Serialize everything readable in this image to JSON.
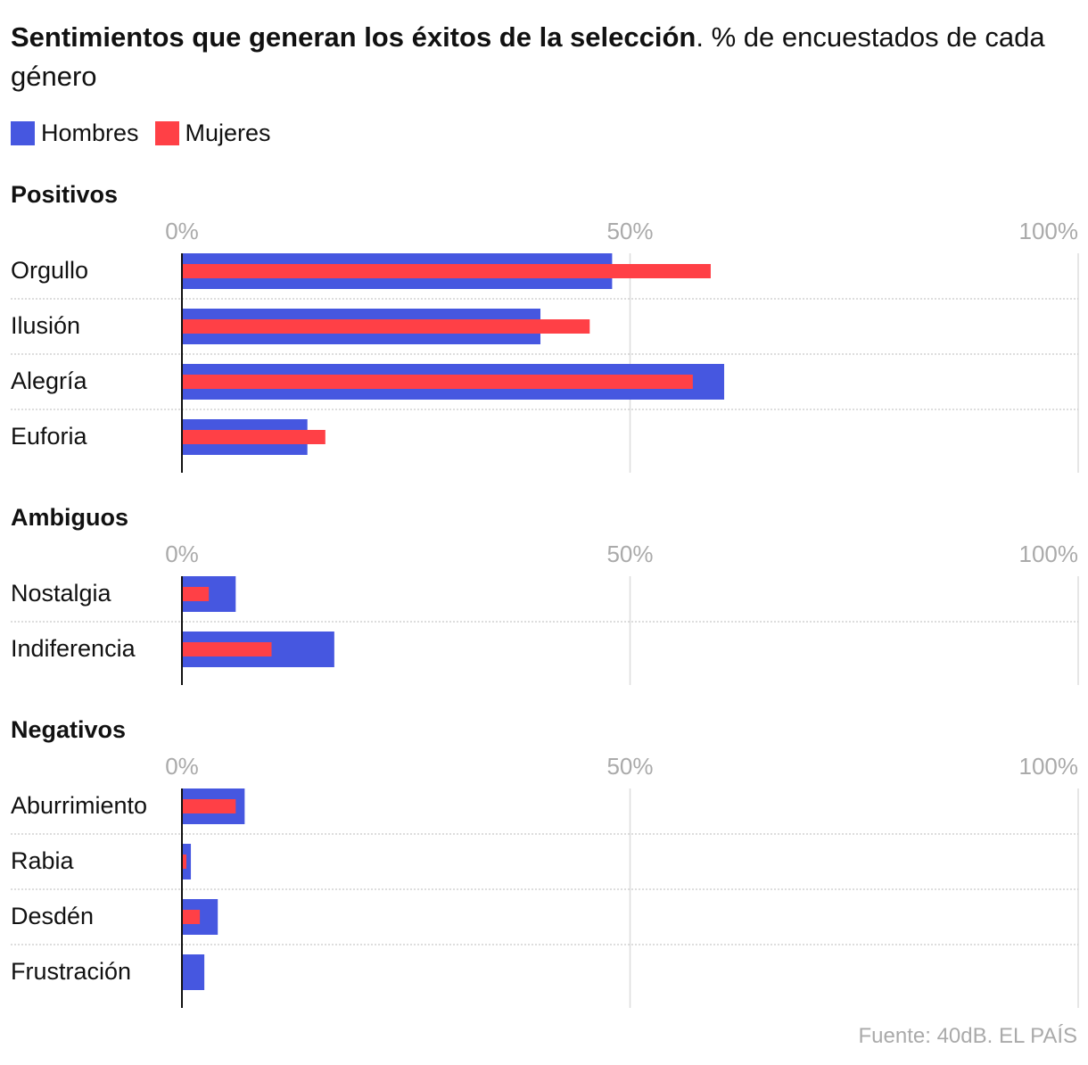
{
  "title": {
    "bold": "Sentimientos que generan los éxitos de la selección",
    "rest": ". % de encuestados de cada género"
  },
  "legend": [
    {
      "label": "Hombres",
      "color": "#4657e0"
    },
    {
      "label": "Mujeres",
      "color": "#ff4046"
    }
  ],
  "source": "Fuente: 40dB. EL PAÍS",
  "chart_data": [
    {
      "type": "bar",
      "title": "Positivos",
      "categories": [
        "Orgullo",
        "Ilusión",
        "Alegría",
        "Euforia"
      ],
      "series": [
        {
          "name": "Hombres",
          "values": [
            48,
            40,
            60.5,
            14
          ]
        },
        {
          "name": "Mujeres",
          "values": [
            59,
            45.5,
            57,
            16
          ]
        }
      ],
      "xlim": [
        0,
        100
      ],
      "ticks": [
        "0%",
        "50%",
        "100%"
      ]
    },
    {
      "type": "bar",
      "title": "Ambiguos",
      "categories": [
        "Nostalgia",
        "Indiferencia"
      ],
      "series": [
        {
          "name": "Hombres",
          "values": [
            6,
            17
          ]
        },
        {
          "name": "Mujeres",
          "values": [
            3,
            10
          ]
        }
      ],
      "xlim": [
        0,
        100
      ],
      "ticks": [
        "0%",
        "50%",
        "100%"
      ]
    },
    {
      "type": "bar",
      "title": "Negativos",
      "categories": [
        "Aburrimiento",
        "Rabia",
        "Desdén",
        "Frustración"
      ],
      "series": [
        {
          "name": "Hombres",
          "values": [
            7,
            1,
            4,
            2.5
          ]
        },
        {
          "name": "Mujeres",
          "values": [
            6,
            0.5,
            2,
            0
          ]
        }
      ],
      "xlim": [
        0,
        100
      ],
      "ticks": [
        "0%",
        "50%",
        "100%"
      ]
    }
  ]
}
